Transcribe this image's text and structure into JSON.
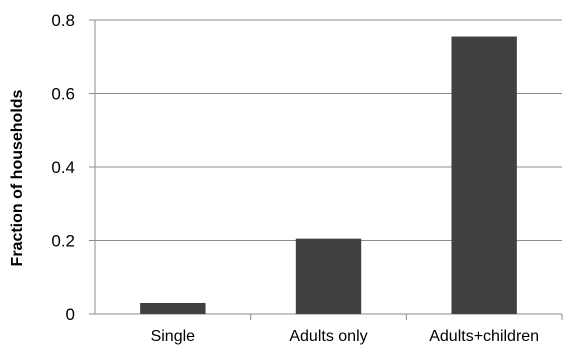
{
  "chart_data": {
    "type": "bar",
    "categories": [
      "Single",
      "Adults only",
      "Adults+children"
    ],
    "values": [
      0.03,
      0.205,
      0.755
    ],
    "xlabel": "",
    "ylabel": "Fraction of households",
    "ylim": [
      0,
      0.8
    ],
    "yticks": [
      "0",
      "0.2",
      "0.4",
      "0.6",
      "0.8"
    ],
    "grid": true,
    "bar_color": "#404040",
    "grid_color": "#8c8c8c"
  }
}
